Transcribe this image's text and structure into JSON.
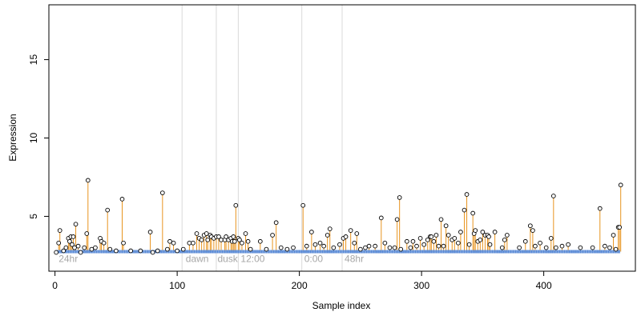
{
  "chart_data": {
    "type": "scatter",
    "title": "",
    "xlabel": "Sample index",
    "ylabel": "Expression",
    "xlim": [
      -5,
      475
    ],
    "ylim": [
      1.5,
      18.5
    ],
    "x_ticks": [
      0,
      100,
      200,
      300,
      400
    ],
    "y_ticks": [
      5,
      10,
      15
    ],
    "grid": false,
    "legend": "none",
    "baseline": 2.75,
    "colors": {
      "axis": "#000000",
      "point_stroke": "#000000",
      "point_fill": "#ffffff",
      "stem": "#e8941f",
      "baseline_marker": "#5b8bd6",
      "vline": "#d9d9d9",
      "annotation": "#a6a6a6"
    },
    "vlines": [
      104,
      132,
      150,
      202,
      235
    ],
    "annotations": [
      {
        "label": "24hr",
        "x": 3
      },
      {
        "label": "dawn",
        "x": 107
      },
      {
        "label": "dusk",
        "x": 133
      },
      {
        "label": "12:00",
        "x": 152
      },
      {
        "label": "0:00",
        "x": 204
      },
      {
        "label": "48hr",
        "x": 237
      }
    ],
    "n_samples": 462,
    "series": [
      {
        "points": [
          [
            1,
            2.7
          ],
          [
            3,
            3.3
          ],
          [
            4,
            4.1
          ],
          [
            7,
            2.8
          ],
          [
            9,
            3.0
          ],
          [
            11,
            3.6
          ],
          [
            12,
            3.4
          ],
          [
            13,
            3.7
          ],
          [
            14,
            3.2
          ],
          [
            15,
            3.7
          ],
          [
            16,
            3.0
          ],
          [
            17,
            4.5
          ],
          [
            19,
            3.1
          ],
          [
            21,
            2.7
          ],
          [
            24,
            3.0
          ],
          [
            26,
            3.9
          ],
          [
            27,
            7.3
          ],
          [
            30,
            2.9
          ],
          [
            33,
            3.0
          ],
          [
            37,
            3.6
          ],
          [
            38,
            3.4
          ],
          [
            40,
            3.3
          ],
          [
            43,
            5.4
          ],
          [
            45,
            2.9
          ],
          [
            50,
            2.8
          ],
          [
            55,
            6.1
          ],
          [
            56,
            3.3
          ],
          [
            62,
            2.8
          ],
          [
            70,
            2.8
          ],
          [
            78,
            4.0
          ],
          [
            80,
            2.7
          ],
          [
            84,
            2.8
          ],
          [
            88,
            6.5
          ],
          [
            92,
            2.9
          ],
          [
            94,
            3.4
          ],
          [
            97,
            3.3
          ],
          [
            100,
            2.8
          ],
          [
            105,
            2.9
          ],
          [
            110,
            3.3
          ],
          [
            113,
            3.3
          ],
          [
            116,
            3.9
          ],
          [
            118,
            3.6
          ],
          [
            120,
            3.5
          ],
          [
            122,
            3.8
          ],
          [
            124,
            3.9
          ],
          [
            125,
            3.5
          ],
          [
            127,
            3.8
          ],
          [
            128,
            3.7
          ],
          [
            130,
            3.6
          ],
          [
            132,
            3.7
          ],
          [
            134,
            3.7
          ],
          [
            136,
            3.5
          ],
          [
            139,
            3.5
          ],
          [
            140,
            3.7
          ],
          [
            142,
            3.5
          ],
          [
            144,
            3.6
          ],
          [
            145,
            3.4
          ],
          [
            146,
            3.7
          ],
          [
            147,
            3.4
          ],
          [
            148,
            5.7
          ],
          [
            150,
            3.6
          ],
          [
            151,
            3.5
          ],
          [
            153,
            3.3
          ],
          [
            156,
            3.9
          ],
          [
            158,
            3.4
          ],
          [
            160,
            2.9
          ],
          [
            168,
            3.4
          ],
          [
            173,
            2.9
          ],
          [
            178,
            3.8
          ],
          [
            181,
            4.6
          ],
          [
            185,
            3.0
          ],
          [
            190,
            2.9
          ],
          [
            195,
            3.0
          ],
          [
            203,
            5.7
          ],
          [
            206,
            3.1
          ],
          [
            210,
            4.0
          ],
          [
            213,
            3.2
          ],
          [
            217,
            3.3
          ],
          [
            220,
            3.1
          ],
          [
            223,
            3.8
          ],
          [
            225,
            4.2
          ],
          [
            228,
            3.0
          ],
          [
            233,
            3.2
          ],
          [
            236,
            3.6
          ],
          [
            238,
            3.7
          ],
          [
            242,
            4.1
          ],
          [
            245,
            3.3
          ],
          [
            247,
            3.9
          ],
          [
            250,
            2.9
          ],
          [
            254,
            3.0
          ],
          [
            257,
            3.1
          ],
          [
            262,
            3.1
          ],
          [
            267,
            4.9
          ],
          [
            270,
            3.3
          ],
          [
            274,
            3.0
          ],
          [
            278,
            3.0
          ],
          [
            280,
            4.8
          ],
          [
            282,
            6.2
          ],
          [
            283,
            2.9
          ],
          [
            288,
            3.4
          ],
          [
            291,
            3.0
          ],
          [
            293,
            3.4
          ],
          [
            296,
            3.1
          ],
          [
            299,
            3.6
          ],
          [
            302,
            3.2
          ],
          [
            305,
            3.5
          ],
          [
            307,
            3.7
          ],
          [
            308,
            3.7
          ],
          [
            310,
            3.4
          ],
          [
            312,
            3.8
          ],
          [
            314,
            3.1
          ],
          [
            316,
            4.8
          ],
          [
            318,
            3.1
          ],
          [
            320,
            4.4
          ],
          [
            322,
            3.8
          ],
          [
            325,
            3.5
          ],
          [
            327,
            3.6
          ],
          [
            330,
            3.3
          ],
          [
            332,
            4.0
          ],
          [
            335,
            5.4
          ],
          [
            337,
            6.4
          ],
          [
            339,
            3.2
          ],
          [
            342,
            5.2
          ],
          [
            343,
            3.9
          ],
          [
            344,
            4.1
          ],
          [
            346,
            3.4
          ],
          [
            348,
            3.5
          ],
          [
            350,
            4.0
          ],
          [
            352,
            3.8
          ],
          [
            354,
            3.8
          ],
          [
            355,
            3.7
          ],
          [
            356,
            3.2
          ],
          [
            360,
            4.0
          ],
          [
            366,
            3.0
          ],
          [
            368,
            3.5
          ],
          [
            370,
            3.8
          ],
          [
            380,
            3.0
          ],
          [
            385,
            3.4
          ],
          [
            389,
            4.4
          ],
          [
            391,
            4.1
          ],
          [
            393,
            3.1
          ],
          [
            397,
            3.3
          ],
          [
            402,
            3.0
          ],
          [
            406,
            3.6
          ],
          [
            408,
            6.3
          ],
          [
            410,
            3.0
          ],
          [
            415,
            3.1
          ],
          [
            420,
            3.2
          ],
          [
            430,
            3.0
          ],
          [
            440,
            3.0
          ],
          [
            446,
            5.5
          ],
          [
            450,
            3.1
          ],
          [
            454,
            3.0
          ],
          [
            457,
            3.8
          ],
          [
            459,
            2.9
          ],
          [
            461,
            4.3
          ],
          [
            462,
            4.3
          ],
          [
            463,
            7.0
          ]
        ]
      }
    ]
  }
}
